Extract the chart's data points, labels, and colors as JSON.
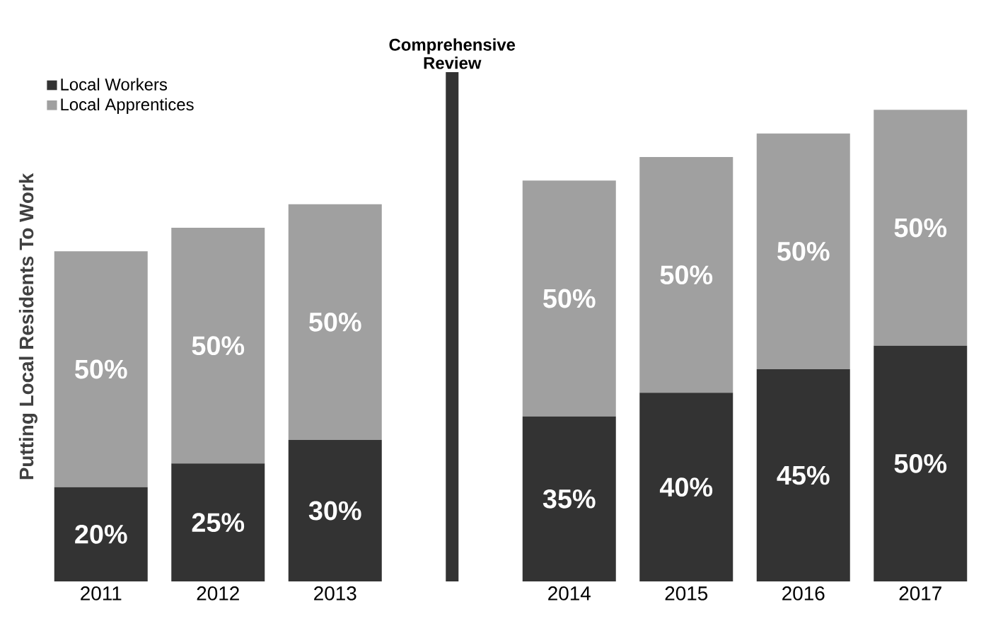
{
  "chart_data": {
    "type": "bar",
    "stacked": true,
    "ylabel": "Putting Local Residents To Work",
    "categories": [
      "2011",
      "2012",
      "2013",
      null,
      "2014",
      "2015",
      "2016",
      "2017"
    ],
    "series": [
      {
        "name": "Local Workers",
        "color": "#333333",
        "values": [
          20,
          25,
          30,
          null,
          35,
          40,
          45,
          50
        ],
        "value_labels": [
          "20%",
          "25%",
          "30%",
          null,
          "35%",
          "40%",
          "45%",
          "50%"
        ]
      },
      {
        "name": "Local Apprentices",
        "color": "#a0a0a0",
        "values": [
          50,
          50,
          50,
          null,
          50,
          50,
          50,
          50
        ],
        "value_labels": [
          "50%",
          "50%",
          "50%",
          null,
          "50%",
          "50%",
          "50%",
          "50%"
        ]
      }
    ],
    "annotations": [
      "Comprehensive Review"
    ],
    "legend": "top left"
  }
}
